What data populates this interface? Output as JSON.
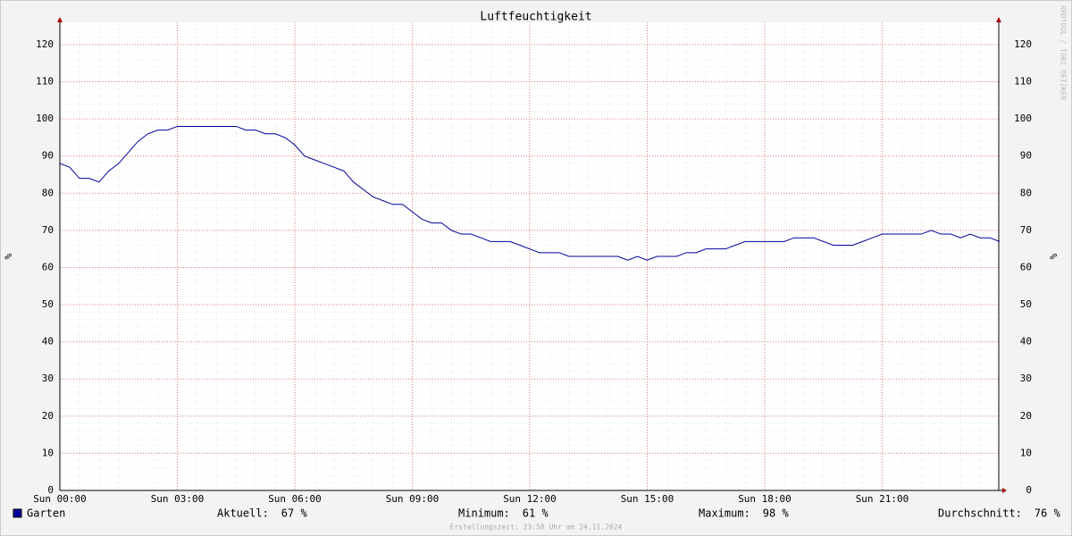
{
  "chart_data": {
    "type": "line",
    "title": "Luftfeuchtigkeit",
    "ylabel": "%",
    "watermark": "RRDTOOL / TOBI OETIKER",
    "footer": "Erstellungszeit: 23:58 Uhr am 24.11.2024",
    "xlim": [
      0,
      24
    ],
    "ylim": [
      0,
      126
    ],
    "grid": true,
    "xticks": [
      {
        "value": 0,
        "label": "Sun 00:00"
      },
      {
        "value": 3,
        "label": "Sun 03:00"
      },
      {
        "value": 6,
        "label": "Sun 06:00"
      },
      {
        "value": 9,
        "label": "Sun 09:00"
      },
      {
        "value": 12,
        "label": "Sun 12:00"
      },
      {
        "value": 15,
        "label": "Sun 15:00"
      },
      {
        "value": 18,
        "label": "Sun 18:00"
      },
      {
        "value": 21,
        "label": "Sun 21:00"
      }
    ],
    "yticks": [
      0,
      10,
      20,
      30,
      40,
      50,
      60,
      70,
      80,
      90,
      100,
      110,
      120
    ],
    "x": [
      0,
      0.25,
      0.5,
      0.75,
      1,
      1.25,
      1.5,
      1.75,
      2,
      2.25,
      2.5,
      2.75,
      3,
      3.25,
      3.5,
      3.75,
      4,
      4.25,
      4.5,
      4.75,
      5,
      5.25,
      5.5,
      5.75,
      6,
      6.25,
      6.5,
      6.75,
      7,
      7.25,
      7.5,
      7.75,
      8,
      8.25,
      8.5,
      8.75,
      9,
      9.25,
      9.5,
      9.75,
      10,
      10.25,
      10.5,
      10.75,
      11,
      11.25,
      11.5,
      11.75,
      12,
      12.25,
      12.5,
      12.75,
      13,
      13.25,
      13.5,
      13.75,
      14,
      14.25,
      14.5,
      14.75,
      15,
      15.25,
      15.5,
      15.75,
      16,
      16.25,
      16.5,
      16.75,
      17,
      17.25,
      17.5,
      17.75,
      18,
      18.25,
      18.5,
      18.75,
      19,
      19.25,
      19.5,
      19.75,
      20,
      20.25,
      20.5,
      20.75,
      21,
      21.25,
      21.5,
      21.75,
      22,
      22.25,
      22.5,
      22.75,
      23,
      23.25,
      23.5,
      23.75,
      24
    ],
    "series": [
      {
        "name": "Garten",
        "color": "#000099",
        "values": [
          88,
          87,
          84,
          84,
          83,
          86,
          88,
          91,
          94,
          96,
          97,
          97,
          98,
          98,
          98,
          98,
          98,
          98,
          98,
          97,
          97,
          96,
          96,
          95,
          93,
          90,
          89,
          88,
          87,
          86,
          83,
          81,
          79,
          78,
          77,
          77,
          75,
          73,
          72,
          72,
          70,
          69,
          69,
          68,
          67,
          67,
          67,
          66,
          65,
          64,
          64,
          64,
          63,
          63,
          63,
          63,
          63,
          63,
          62,
          63,
          62,
          63,
          63,
          63,
          64,
          64,
          65,
          65,
          65,
          66,
          67,
          67,
          67,
          67,
          67,
          68,
          68,
          68,
          67,
          66,
          66,
          66,
          67,
          68,
          69,
          69,
          69,
          69,
          69,
          70,
          69,
          69,
          68,
          69,
          68,
          68,
          67
        ]
      }
    ],
    "legend_stats": [
      {
        "label": "Aktuell:",
        "value": "67 %"
      },
      {
        "label": "Minimum:",
        "value": "61 %"
      },
      {
        "label": "Maximum:",
        "value": "98 %"
      },
      {
        "label": "Durchschnitt:",
        "value": "76 %"
      }
    ]
  }
}
